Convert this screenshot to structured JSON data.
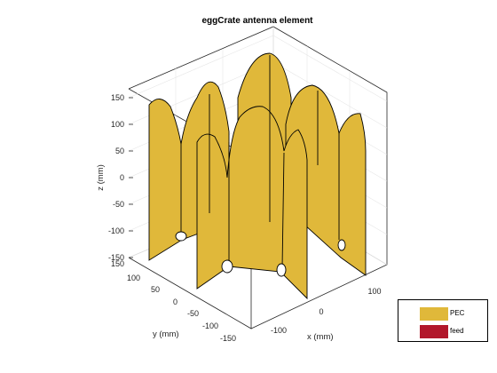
{
  "title": "eggCrate antenna element",
  "axes": {
    "xlabel": "x (mm)",
    "ylabel": "y (mm)",
    "zlabel": "z (mm)",
    "xticks": [
      "-100",
      "0",
      "100"
    ],
    "yticks": [
      "150",
      "100",
      "50",
      "0",
      "-50",
      "-100",
      "-150"
    ],
    "zticks": [
      "150",
      "100",
      "50",
      "0",
      "-50",
      "-100",
      "-150"
    ]
  },
  "legend": {
    "items": [
      {
        "label": "PEC",
        "color": "#e0b83a"
      },
      {
        "label": "feed",
        "color": "#b2182b"
      }
    ]
  },
  "colors": {
    "metal": "#e0b83a",
    "edge": "#000000",
    "grid": "#e6e6e6",
    "axis": "#262626"
  }
}
